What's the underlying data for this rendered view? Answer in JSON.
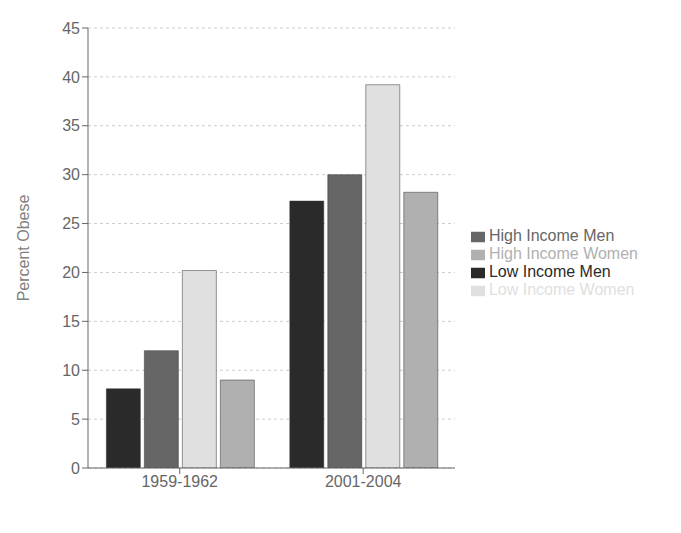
{
  "chart_data": {
    "type": "bar",
    "categories": [
      "1959-1962",
      "2001-2004"
    ],
    "series": [
      {
        "name": "Low Income Men",
        "color": "#2a2a2a",
        "values": [
          8.1,
          27.3
        ]
      },
      {
        "name": "High Income Men",
        "color": "#666666",
        "values": [
          12.0,
          30.0
        ]
      },
      {
        "name": "Low Income Women",
        "color": "#e0e0e0",
        "values": [
          20.2,
          39.2
        ]
      },
      {
        "name": "High Income Women",
        "color": "#b0b0b0",
        "values": [
          9.0,
          28.2
        ]
      }
    ],
    "ylabel": "Percent Obese",
    "ylim": [
      0,
      45
    ],
    "yticks": [
      0,
      5,
      10,
      15,
      20,
      25,
      30,
      35,
      40,
      45
    ],
    "grid": true,
    "legend": "right"
  }
}
